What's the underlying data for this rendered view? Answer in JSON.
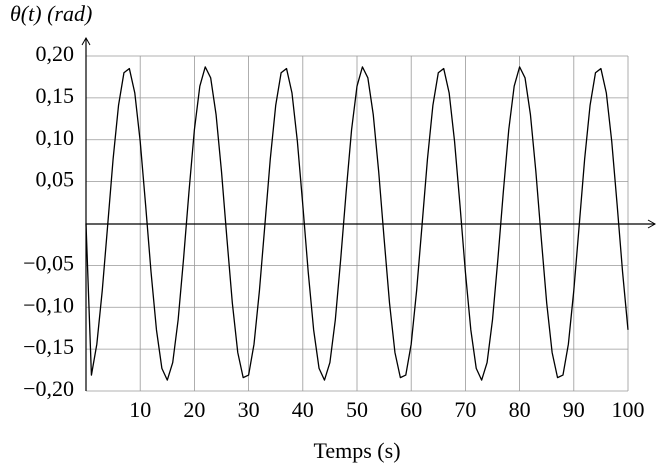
{
  "chart_data": {
    "type": "line",
    "y_label": "θ(t) (rad)",
    "x_label": "Temps (s)",
    "x": [
      0,
      1,
      2,
      3,
      4,
      5,
      6,
      7,
      8,
      9,
      10,
      11,
      12,
      13,
      14,
      15,
      16,
      17,
      18,
      19,
      20,
      21,
      22,
      23,
      24,
      25,
      26,
      27,
      28,
      29,
      30,
      31,
      32,
      33,
      34,
      35,
      36,
      37,
      38,
      39,
      40,
      41,
      42,
      43,
      44,
      45,
      46,
      47,
      48,
      49,
      50,
      51,
      52,
      53,
      54,
      55,
      56,
      57,
      58,
      59,
      60,
      61,
      62,
      63,
      64,
      65,
      66,
      67,
      68,
      69,
      70,
      71,
      72,
      73,
      74,
      75,
      76,
      77,
      78,
      79,
      80,
      81,
      82,
      83,
      84,
      85,
      86,
      87,
      88,
      89,
      90,
      91,
      92,
      93,
      94,
      95,
      96,
      97,
      98,
      99,
      100
    ],
    "series": [
      {
        "color": "#000000",
        "values": [
          0,
          -0.181,
          -0.144,
          -0.08,
          -0.002,
          0.077,
          0.141,
          0.18,
          0.185,
          0.156,
          0.098,
          0.022,
          -0.058,
          -0.127,
          -0.173,
          -0.187,
          -0.166,
          -0.115,
          -0.042,
          0.038,
          0.112,
          0.164,
          0.187,
          0.174,
          0.13,
          0.062,
          -0.018,
          -0.095,
          -0.154,
          -0.184,
          -0.181,
          -0.144,
          -0.08,
          -0.002,
          0.077,
          0.141,
          0.18,
          0.185,
          0.156,
          0.098,
          0.022,
          -0.058,
          -0.127,
          -0.173,
          -0.187,
          -0.166,
          -0.115,
          -0.042,
          0.038,
          0.112,
          0.164,
          0.187,
          0.174,
          0.13,
          0.062,
          -0.018,
          -0.095,
          -0.154,
          -0.184,
          -0.181,
          -0.144,
          -0.08,
          -0.002,
          0.077,
          0.141,
          0.18,
          0.185,
          0.156,
          0.098,
          0.022,
          -0.058,
          -0.127,
          -0.173,
          -0.187,
          -0.166,
          -0.115,
          -0.042,
          0.038,
          0.112,
          0.164,
          0.187,
          0.174,
          0.13,
          0.062,
          -0.018,
          -0.095,
          -0.154,
          -0.184,
          -0.181,
          -0.144,
          -0.08,
          -0.002,
          0.077,
          0.141,
          0.18,
          0.185,
          0.156,
          0.098,
          0.022,
          -0.058,
          -0.127
        ]
      }
    ],
    "xlim": [
      0,
      100
    ],
    "ylim": [
      -0.2,
      0.2
    ],
    "xticks": [
      10,
      20,
      30,
      40,
      50,
      60,
      70,
      80,
      90,
      100
    ],
    "yticks": [
      {
        "value": -0.2,
        "label": "−0,20"
      },
      {
        "value": -0.15,
        "label": "−0,15"
      },
      {
        "value": -0.1,
        "label": "−0,10"
      },
      {
        "value": -0.05,
        "label": "−0,05"
      },
      {
        "value": 0.05,
        "label": "0,05"
      },
      {
        "value": 0.1,
        "label": "0,10"
      },
      {
        "value": 0.15,
        "label": "0,15"
      },
      {
        "value": 0.2,
        "label": "0,20"
      }
    ],
    "grid": true
  }
}
